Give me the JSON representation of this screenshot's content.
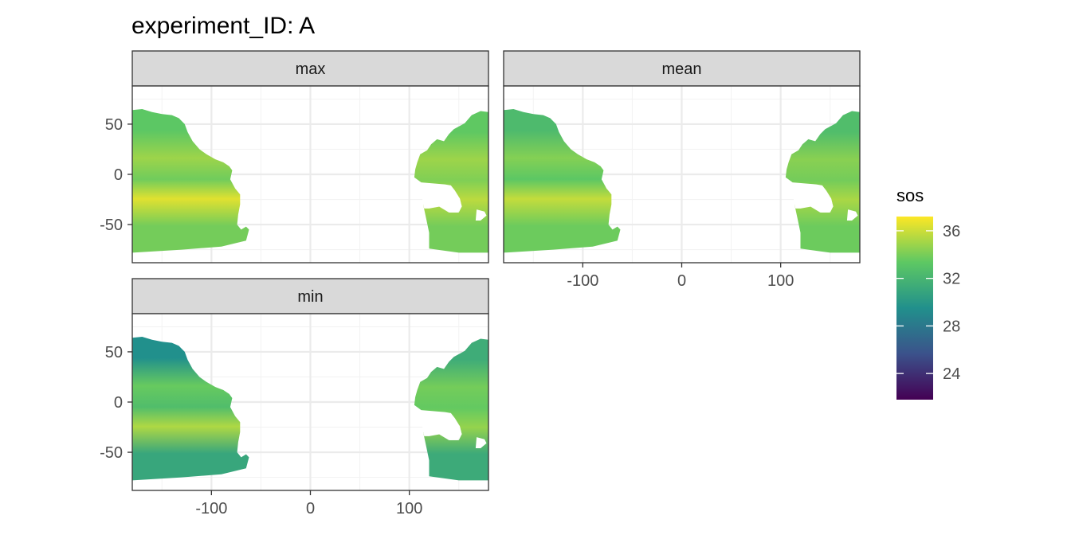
{
  "chart_data": {
    "type": "heatmap",
    "title": "experiment_ID: A",
    "facets": [
      "max",
      "mean",
      "min"
    ],
    "x_ticks": [
      -100,
      0,
      100
    ],
    "y_ticks": [
      50,
      0,
      -50
    ],
    "xlim": [
      -180,
      180
    ],
    "ylim": [
      -88,
      88
    ],
    "grid": true,
    "legend": {
      "title": "sos",
      "position": "right",
      "ticks": [
        36,
        32,
        28,
        24
      ],
      "range": [
        21.8,
        37.2
      ],
      "palette": [
        "#440154",
        "#3b528b",
        "#21908c",
        "#5dc863",
        "#fde725"
      ]
    },
    "ocean_regions": {
      "east_pacific": {
        "lon": [
          -180,
          -62
        ],
        "lat": [
          -79,
          65
        ],
        "values": {
          "max": {
            "north": 33.3,
            "subtropical_north": 34.9,
            "equator": 33.8,
            "subtropical_south": 36.5,
            "south": 33.9
          },
          "mean": {
            "north": 32.4,
            "subtropical_north": 34.3,
            "equator": 33.3,
            "subtropical_south": 35.8,
            "south": 33.7
          },
          "min": {
            "north": 29.5,
            "subtropical_north": 33.6,
            "equator": 32.6,
            "subtropical_south": 35.3,
            "south": 31.0
          }
        }
      },
      "west_pacific": {
        "lon": [
          105,
          180
        ],
        "lat": [
          -78,
          62
        ],
        "values": {
          "max": {
            "north": 33.4,
            "subtropical_north": 34.9,
            "equator": 34.2,
            "subtropical_south": 35.6,
            "south": 33.9
          },
          "mean": {
            "north": 32.6,
            "subtropical_north": 34.4,
            "equator": 33.9,
            "subtropical_south": 35.2,
            "south": 33.7
          },
          "min": {
            "north": 31.4,
            "subtropical_north": 33.9,
            "equator": 33.5,
            "subtropical_south": 34.7,
            "south": 31.3
          }
        }
      }
    }
  }
}
